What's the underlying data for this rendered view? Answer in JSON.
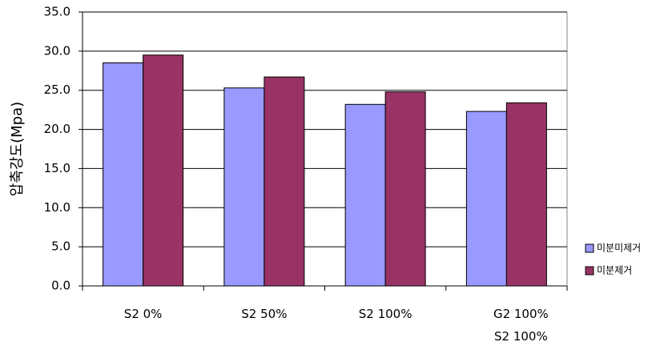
{
  "chart_data": {
    "type": "bar",
    "y_label": "압축강도(Mpa)",
    "categories": [
      "S2 0%",
      "S2 50%",
      "S2 100%",
      "G2 100%\nS2 100%"
    ],
    "series": [
      {
        "name": "미분미제거",
        "color": "#9999ff",
        "values": [
          28.5,
          25.3,
          23.2,
          22.3
        ]
      },
      {
        "name": "미분제거",
        "color": "#993366",
        "values": [
          29.5,
          26.7,
          24.8,
          23.4
        ]
      }
    ],
    "ylim": [
      0,
      35
    ],
    "yticks": [
      {
        "value": 0,
        "label": "0.0"
      },
      {
        "value": 5,
        "label": "5.0"
      },
      {
        "value": 10,
        "label": "10.0"
      },
      {
        "value": 15,
        "label": "15.0"
      },
      {
        "value": 20,
        "label": "20.0"
      },
      {
        "value": 25,
        "label": "25.0"
      },
      {
        "value": 30,
        "label": "30.0"
      },
      {
        "value": 35,
        "label": "35.0"
      }
    ],
    "grid": true,
    "legend": "right"
  }
}
